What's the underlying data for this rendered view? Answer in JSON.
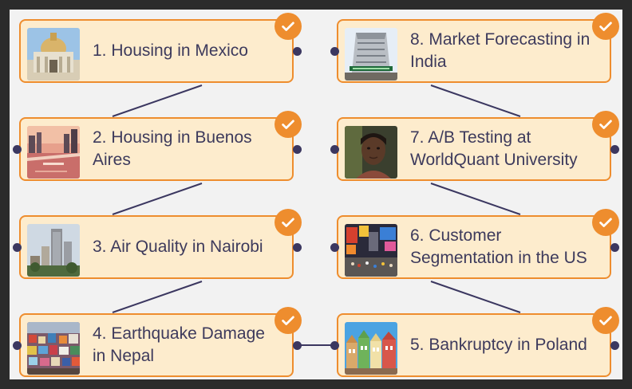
{
  "cards": [
    {
      "title": "1. Housing in Mexico",
      "thumb": "palace-of-fine-arts-image",
      "completed": true
    },
    {
      "title": "2. Housing in Buenos Aires",
      "thumb": "buenos-aires-waterfront-image",
      "completed": true
    },
    {
      "title": "3. Air Quality in Nairobi",
      "thumb": "nairobi-skyline-image",
      "completed": true
    },
    {
      "title": "4. Earthquake Damage in Nepal",
      "thumb": "nepal-hillside-town-image",
      "completed": true
    },
    {
      "title": "5. Bankruptcy in Poland",
      "thumb": "polish-townhouses-image",
      "completed": true
    },
    {
      "title": "6. Customer Segmentation in the US",
      "thumb": "times-square-image",
      "completed": true
    },
    {
      "title": "7. A/B Testing at WorldQuant University",
      "thumb": "portrait-image",
      "completed": true
    },
    {
      "title": "8. Market Forecasting in India",
      "thumb": "bombay-stock-exchange-image",
      "completed": true
    }
  ],
  "colors": {
    "card_background": "#fdeccd",
    "card_border": "#ee8d2e",
    "check_badge": "#ee8d2e",
    "connector": "#3b3760",
    "title_text": "#3d3a5c"
  },
  "badge_icon": "checkmark-icon"
}
